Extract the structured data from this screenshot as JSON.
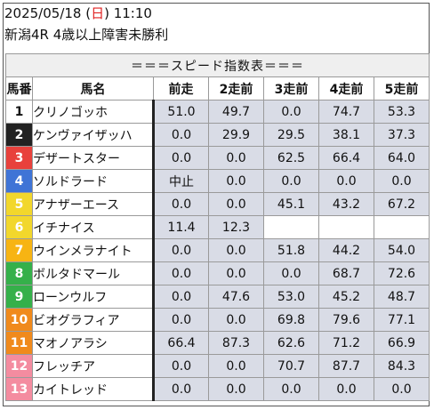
{
  "header": {
    "date_prefix": "2025/05/18 (",
    "weekday": "日",
    "date_suffix": ") 11:10",
    "race": "新潟4R 4歳以上障害未勝利"
  },
  "table": {
    "banner": "＝＝＝スピード指数表＝＝＝",
    "columns": [
      "馬番",
      "馬名",
      "前走",
      "2走前",
      "3走前",
      "4走前",
      "5走前"
    ],
    "rows": [
      {
        "num": "1",
        "name": "クリノゴッホ",
        "vals": [
          "51.0",
          "49.7",
          "0.0",
          "74.7",
          "53.3"
        ]
      },
      {
        "num": "2",
        "name": "ケンヴァイザッハ",
        "vals": [
          "0.0",
          "29.9",
          "29.5",
          "38.1",
          "37.3"
        ]
      },
      {
        "num": "3",
        "name": "デザートスター",
        "vals": [
          "0.0",
          "0.0",
          "62.5",
          "66.4",
          "64.0"
        ]
      },
      {
        "num": "4",
        "name": "ソルドラード",
        "vals": [
          "中止",
          "0.0",
          "0.0",
          "0.0",
          "0.0"
        ]
      },
      {
        "num": "5",
        "name": "アナザーエース",
        "vals": [
          "0.0",
          "0.0",
          "45.1",
          "43.2",
          "67.2"
        ]
      },
      {
        "num": "6",
        "name": "イチナイス",
        "vals": [
          "11.4",
          "12.3",
          "",
          "",
          ""
        ]
      },
      {
        "num": "7",
        "name": "ウインメラナイト",
        "vals": [
          "0.0",
          "0.0",
          "51.8",
          "44.2",
          "54.0"
        ]
      },
      {
        "num": "8",
        "name": "ボルタドマール",
        "vals": [
          "0.0",
          "0.0",
          "0.0",
          "68.7",
          "72.6"
        ]
      },
      {
        "num": "9",
        "name": "ローンウルフ",
        "vals": [
          "0.0",
          "47.6",
          "53.0",
          "45.2",
          "48.7"
        ]
      },
      {
        "num": "10",
        "name": "ビオグラフィア",
        "vals": [
          "0.0",
          "0.0",
          "69.8",
          "79.6",
          "77.1"
        ]
      },
      {
        "num": "11",
        "name": "マオノアラシ",
        "vals": [
          "66.4",
          "87.3",
          "62.6",
          "71.2",
          "66.9"
        ]
      },
      {
        "num": "12",
        "name": "フレッチア",
        "vals": [
          "0.0",
          "0.0",
          "70.7",
          "87.7",
          "84.3"
        ]
      },
      {
        "num": "13",
        "name": "カイトレッド",
        "vals": [
          "0.0",
          "0.0",
          "0.0",
          "0.0",
          "0.0"
        ]
      }
    ]
  },
  "colors": {
    "frame_colors": {
      "1": "#ffffff",
      "2": "#222222",
      "3": "#e8413c",
      "4": "#3f74d6",
      "5": "#f2d72c",
      "6": "#f2d72c",
      "7": "#f7b413",
      "8": "#35b04a",
      "9": "#35b04a",
      "10": "#f08a1c",
      "11": "#f08a1c",
      "12": "#f48ca0",
      "13": "#f48ca0"
    },
    "frame_text": {
      "1": "#111111",
      "5": "#ffffff",
      "6": "#ffffff",
      "7": "#ffffff"
    }
  }
}
